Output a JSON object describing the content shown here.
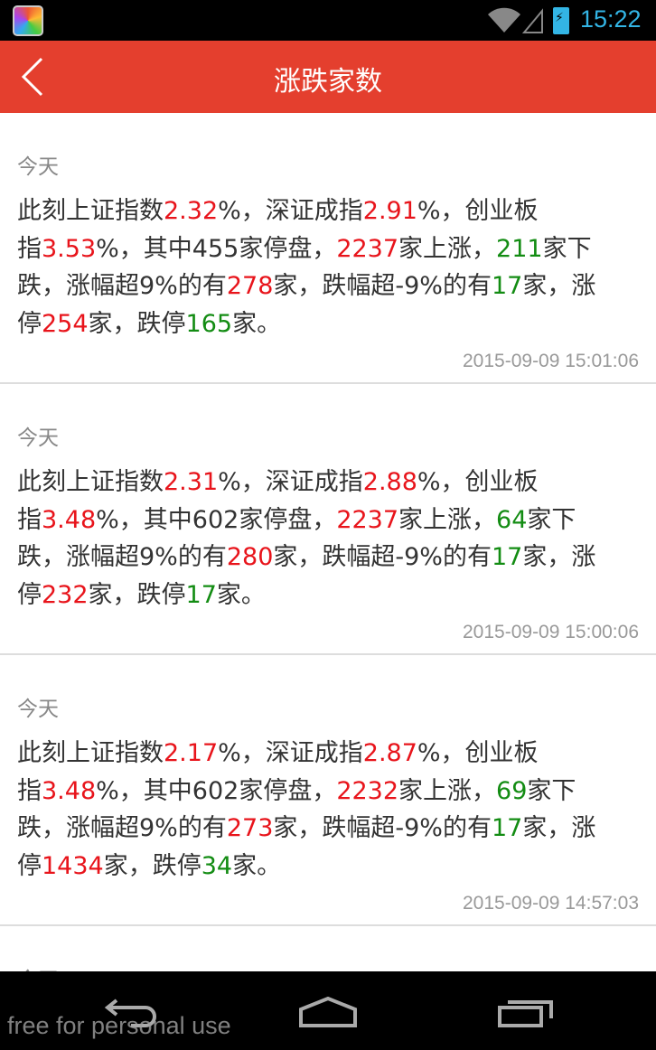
{
  "status_bar": {
    "time": "15:22"
  },
  "header": {
    "title": "涨跌家数"
  },
  "entries": [
    {
      "day": "今天",
      "timestamp": "2015-09-09 15:01:06",
      "lines": [
        [
          {
            "t": "此刻上证指数",
            "c": ""
          },
          {
            "t": "2.32",
            "c": "red"
          },
          {
            "t": "%，深证成指",
            "c": ""
          },
          {
            "t": "2.91",
            "c": "red"
          },
          {
            "t": "%，创业板",
            "c": ""
          }
        ],
        [
          {
            "t": "指",
            "c": ""
          },
          {
            "t": "3.53",
            "c": "red"
          },
          {
            "t": "%，其中455家停盘，",
            "c": ""
          },
          {
            "t": "2237",
            "c": "red"
          },
          {
            "t": "家上涨，",
            "c": ""
          },
          {
            "t": "211",
            "c": "green"
          },
          {
            "t": "家下",
            "c": ""
          }
        ],
        [
          {
            "t": "跌，涨幅超9%的有",
            "c": ""
          },
          {
            "t": "278",
            "c": "red"
          },
          {
            "t": "家，跌幅超-9%的有",
            "c": ""
          },
          {
            "t": "17",
            "c": "green"
          },
          {
            "t": "家，涨",
            "c": ""
          }
        ],
        [
          {
            "t": "停",
            "c": ""
          },
          {
            "t": "254",
            "c": "red"
          },
          {
            "t": "家，跌停",
            "c": ""
          },
          {
            "t": "165",
            "c": "green"
          },
          {
            "t": "家。",
            "c": ""
          }
        ]
      ]
    },
    {
      "day": "今天",
      "timestamp": "2015-09-09 15:00:06",
      "lines": [
        [
          {
            "t": "此刻上证指数",
            "c": ""
          },
          {
            "t": "2.31",
            "c": "red"
          },
          {
            "t": "%，深证成指",
            "c": ""
          },
          {
            "t": "2.88",
            "c": "red"
          },
          {
            "t": "%，创业板",
            "c": ""
          }
        ],
        [
          {
            "t": "指",
            "c": ""
          },
          {
            "t": "3.48",
            "c": "red"
          },
          {
            "t": "%，其中602家停盘，",
            "c": ""
          },
          {
            "t": "2237",
            "c": "red"
          },
          {
            "t": "家上涨，",
            "c": ""
          },
          {
            "t": "64",
            "c": "green"
          },
          {
            "t": "家下",
            "c": ""
          }
        ],
        [
          {
            "t": "跌，涨幅超9%的有",
            "c": ""
          },
          {
            "t": "280",
            "c": "red"
          },
          {
            "t": "家，跌幅超-9%的有",
            "c": ""
          },
          {
            "t": "17",
            "c": "green"
          },
          {
            "t": "家，涨",
            "c": ""
          }
        ],
        [
          {
            "t": "停",
            "c": ""
          },
          {
            "t": "232",
            "c": "red"
          },
          {
            "t": "家，跌停",
            "c": ""
          },
          {
            "t": "17",
            "c": "green"
          },
          {
            "t": "家。",
            "c": ""
          }
        ]
      ]
    },
    {
      "day": "今天",
      "timestamp": "2015-09-09 14:57:03",
      "lines": [
        [
          {
            "t": "此刻上证指数",
            "c": ""
          },
          {
            "t": "2.17",
            "c": "red"
          },
          {
            "t": "%，深证成指",
            "c": ""
          },
          {
            "t": "2.87",
            "c": "red"
          },
          {
            "t": "%，创业板",
            "c": ""
          }
        ],
        [
          {
            "t": "指",
            "c": ""
          },
          {
            "t": "3.48",
            "c": "red"
          },
          {
            "t": "%，其中602家停盘，",
            "c": ""
          },
          {
            "t": "2232",
            "c": "red"
          },
          {
            "t": "家上涨，",
            "c": ""
          },
          {
            "t": "69",
            "c": "green"
          },
          {
            "t": "家下",
            "c": ""
          }
        ],
        [
          {
            "t": "跌，涨幅超9%的有",
            "c": ""
          },
          {
            "t": "273",
            "c": "red"
          },
          {
            "t": "家，跌幅超-9%的有",
            "c": ""
          },
          {
            "t": "17",
            "c": "green"
          },
          {
            "t": "家，涨",
            "c": ""
          }
        ],
        [
          {
            "t": "停",
            "c": ""
          },
          {
            "t": "1434",
            "c": "red"
          },
          {
            "t": "家，跌停",
            "c": ""
          },
          {
            "t": "34",
            "c": "green"
          },
          {
            "t": "家。",
            "c": ""
          }
        ]
      ]
    },
    {
      "day": "今天"
    }
  ],
  "colors": {
    "header": "#e43f2e",
    "up": "#e8141b",
    "down": "#138c13"
  },
  "watermark": "free for personal use"
}
